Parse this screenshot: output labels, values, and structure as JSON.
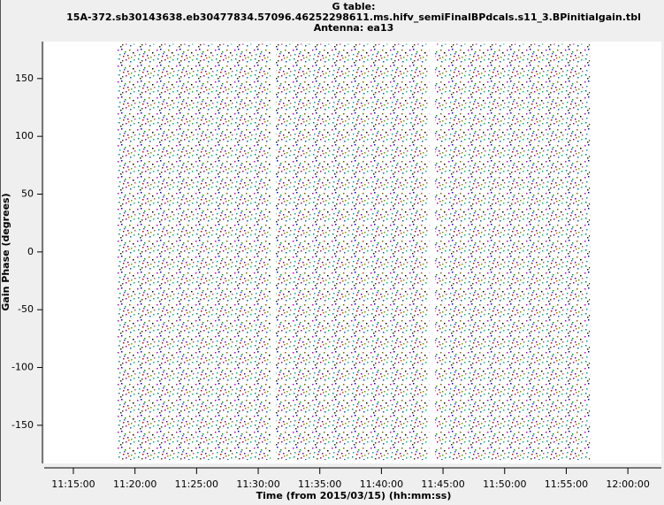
{
  "chart_data": {
    "type": "scatter",
    "title": [
      "G table:",
      "15A-372.sb30143638.eb30477834.57096.46252298611.ms.hifv_semiFinalBPdcals.s11_3.BPinitialgain.tbl",
      "Antenna: ea13"
    ],
    "x_label": "Time (from 2015/03/15) (hh:mm:ss)",
    "y_label": "Gain Phase (degrees)",
    "xlim": [
      40358,
      43363
    ],
    "ylim": [
      -183,
      182
    ],
    "xticks": [
      {
        "value": 40500,
        "label": "11:15:00"
      },
      {
        "value": 40800,
        "label": "11:20:00"
      },
      {
        "value": 41100,
        "label": "11:25:00"
      },
      {
        "value": 41400,
        "label": "11:30:00"
      },
      {
        "value": 41700,
        "label": "11:35:00"
      },
      {
        "value": 42000,
        "label": "11:40:00"
      },
      {
        "value": 42300,
        "label": "11:45:00"
      },
      {
        "value": 42600,
        "label": "11:50:00"
      },
      {
        "value": 42900,
        "label": "11:55:00"
      },
      {
        "value": 43200,
        "label": "12:00:00"
      }
    ],
    "yticks": [
      -150,
      -100,
      -50,
      0,
      50,
      100,
      150
    ],
    "scans": [
      {
        "x": [
          40714,
          41460
        ],
        "y": [
          -180,
          180
        ]
      },
      {
        "x": [
          41486,
          42232
        ],
        "y": [
          -180,
          180
        ]
      },
      {
        "x": [
          42261,
          43015
        ],
        "y": [
          -180,
          180
        ]
      }
    ]
  }
}
